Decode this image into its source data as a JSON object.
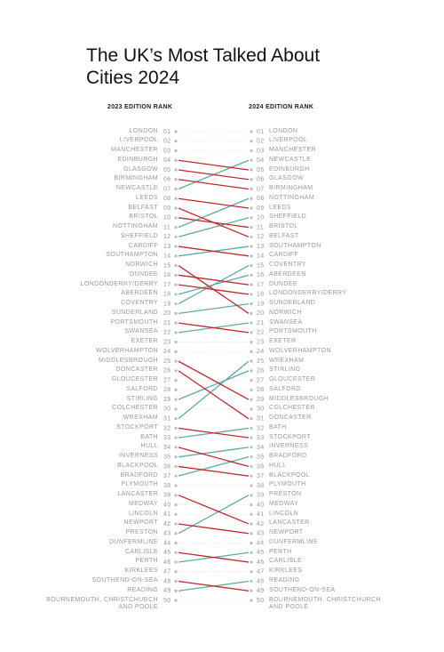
{
  "chart_data": {
    "type": "slope",
    "title": "The UK’s Most Talked About Cities 2024",
    "categories": [
      "LONDON",
      "LIVERPOOL",
      "MANCHESTER",
      "EDINBURGH",
      "GLASGOW",
      "BIRMINGHAM",
      "NEWCASTLE",
      "LEEDS",
      "BELFAST",
      "BRISTOL",
      "NOTTINGHAM",
      "SHEFFIELD",
      "CARDIFF",
      "SOUTHAMPTON",
      "NORWICH",
      "DUNDEE",
      "LONDONDERRY/DERRY",
      "ABERDEEN",
      "COVENTRY",
      "SUNDERLAND",
      "PORTSMOUTH",
      "SWANSEA",
      "EXETER",
      "WOLVERHAMPTON",
      "MIDDLESBROUGH",
      "DONCASTER",
      "GLOUCESTER",
      "SALFORD",
      "STIRLING",
      "COLCHESTER",
      "WREXHAM",
      "STOCKPORT",
      "BATH",
      "HULL",
      "INVERNESS",
      "BLACKPOOL",
      "BRADFORD",
      "PLYMOUTH",
      "LANCASTER",
      "MEDWAY",
      "LINCOLN",
      "NEWPORT",
      "PRESTON",
      "DUNFERMLINE",
      "CARLISLE",
      "PERTH",
      "KIRKLEES",
      "SOUTHEND-ON-SEA",
      "READING",
      "BOURNEMOUTH, CHRISTCHURCH AND POOLE"
    ],
    "series": [
      {
        "name": "2023 EDITION RANK",
        "values": [
          1,
          2,
          3,
          4,
          5,
          6,
          7,
          8,
          9,
          10,
          11,
          12,
          13,
          14,
          15,
          16,
          17,
          18,
          19,
          20,
          21,
          22,
          23,
          24,
          25,
          26,
          27,
          28,
          29,
          30,
          31,
          32,
          33,
          34,
          35,
          36,
          37,
          38,
          39,
          40,
          41,
          42,
          43,
          44,
          45,
          46,
          47,
          48,
          49,
          50
        ],
        "value_labels": [
          "01",
          "02",
          "03",
          "04",
          "05",
          "06",
          "07",
          "08",
          "09",
          "10",
          "11",
          "12",
          "13",
          "14",
          "15",
          "16",
          "17",
          "18",
          "19",
          "20",
          "21",
          "22",
          "23",
          "24",
          "25",
          "26",
          "27",
          "28",
          "29",
          "30",
          "31",
          "32",
          "33",
          "34",
          "35",
          "36",
          "37",
          "38",
          "39",
          "40",
          "41",
          "42",
          "43",
          "44",
          "45",
          "46",
          "47",
          "48",
          "49",
          "50"
        ]
      },
      {
        "name": "2024 EDITION RANK",
        "values": [
          1,
          2,
          3,
          5,
          6,
          7,
          4,
          9,
          12,
          11,
          8,
          10,
          14,
          13,
          20,
          17,
          18,
          16,
          15,
          19,
          22,
          21,
          23,
          24,
          29,
          31,
          27,
          28,
          26,
          30,
          25,
          33,
          32,
          36,
          34,
          37,
          35,
          38,
          42,
          40,
          41,
          43,
          39,
          44,
          46,
          45,
          47,
          49,
          48,
          50
        ],
        "value_labels": [
          "01",
          "02",
          "03",
          "05",
          "06",
          "07",
          "04",
          "09",
          "12",
          "11",
          "08",
          "10",
          "14",
          "13",
          "20",
          "17",
          "18",
          "16",
          "15",
          "19",
          "22",
          "21",
          "23",
          "24",
          "29",
          "31",
          "27",
          "28",
          "26",
          "30",
          "25",
          "33",
          "32",
          "36",
          "34",
          "37",
          "35",
          "38",
          "42",
          "40",
          "41",
          "43",
          "39",
          "44",
          "46",
          "45",
          "47",
          "49",
          "48",
          "50"
        ]
      }
    ],
    "rise_color": "#5fa9a1",
    "fall_color": "#c1272d",
    "same_color": "#d8d8d8"
  }
}
